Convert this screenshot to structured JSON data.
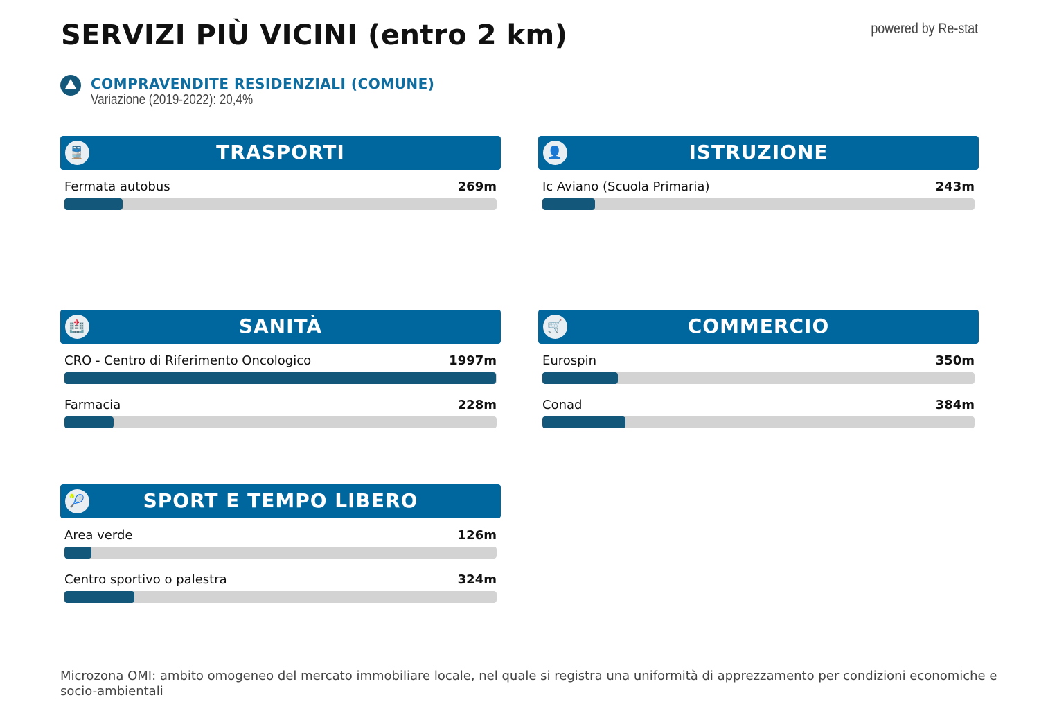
{
  "title": "SERVIZI PIÙ VICINI (entro 2 km)",
  "powered": "powered by Re-stat",
  "kpi": {
    "title": "COMPRAVENDITE RESIDENZIALI (COMUNE)",
    "subtitle": "Variazione (2019-2022): 20,4%",
    "icon": "triangle-up-icon"
  },
  "scale_max_m": 2000,
  "colors": {
    "header": "#00679e",
    "fill": "#13587a",
    "track": "#d3d3d3"
  },
  "sections": [
    {
      "title": "TRASPORTI",
      "icon": "train-icon",
      "items": [
        {
          "name": "Fermata autobus",
          "value": "269m",
          "m": 269
        }
      ]
    },
    {
      "title": "ISTRUZIONE",
      "icon": "graduate-icon",
      "items": [
        {
          "name": "Ic Aviano (Scuola Primaria)",
          "value": "243m",
          "m": 243
        }
      ]
    },
    {
      "title": "SANITÀ",
      "icon": "hospital-icon",
      "items": [
        {
          "name": "CRO - Centro di Riferimento Oncologico",
          "value": "1997m",
          "m": 1997
        },
        {
          "name": "Farmacia",
          "value": "228m",
          "m": 228
        }
      ]
    },
    {
      "title": "COMMERCIO",
      "icon": "cart-icon",
      "items": [
        {
          "name": "Eurospin",
          "value": "350m",
          "m": 350
        },
        {
          "name": "Conad",
          "value": "384m",
          "m": 384
        }
      ]
    },
    {
      "title": "SPORT E TEMPO LIBERO",
      "icon": "tennis-icon",
      "items": [
        {
          "name": "Area verde",
          "value": "126m",
          "m": 126
        },
        {
          "name": "Centro sportivo o palestra",
          "value": "324m",
          "m": 324
        }
      ]
    }
  ],
  "footer": "Microzona OMI: ambito omogeneo del mercato immobiliare locale, nel quale si registra una uniformità di apprezzamento per condizioni economiche e socio-ambientali"
}
